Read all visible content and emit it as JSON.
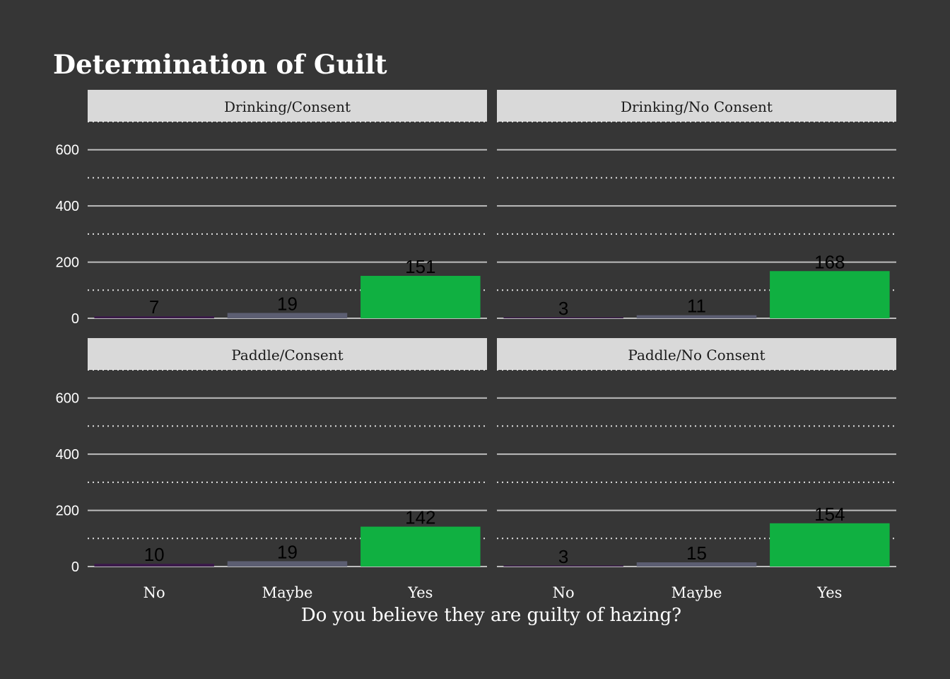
{
  "chart_data": {
    "type": "bar",
    "title": "Determination of Guilt",
    "xlabel": "Do you believe they are guilty of hazing?",
    "ylabel": "",
    "categories": [
      "No",
      "Maybe",
      "Yes"
    ],
    "ylim": [
      0,
      700
    ],
    "y_ticks": [
      0,
      200,
      400,
      600
    ],
    "grid": "major solid, minor dotted",
    "legend": "none",
    "colors": {
      "No": "#3b1a4a",
      "Maybe": "#5c5e72",
      "Yes": "#10b041",
      "background": "#363636",
      "strip": "#d9d9d9",
      "grid": "#bdbdbd"
    },
    "panels": [
      {
        "name": "Drinking/Consent",
        "values": [
          7,
          19,
          151
        ]
      },
      {
        "name": "Drinking/No Consent",
        "values": [
          3,
          11,
          168
        ]
      },
      {
        "name": "Paddle/Consent",
        "values": [
          10,
          19,
          142
        ]
      },
      {
        "name": "Paddle/No Consent",
        "values": [
          3,
          15,
          154
        ]
      }
    ]
  }
}
